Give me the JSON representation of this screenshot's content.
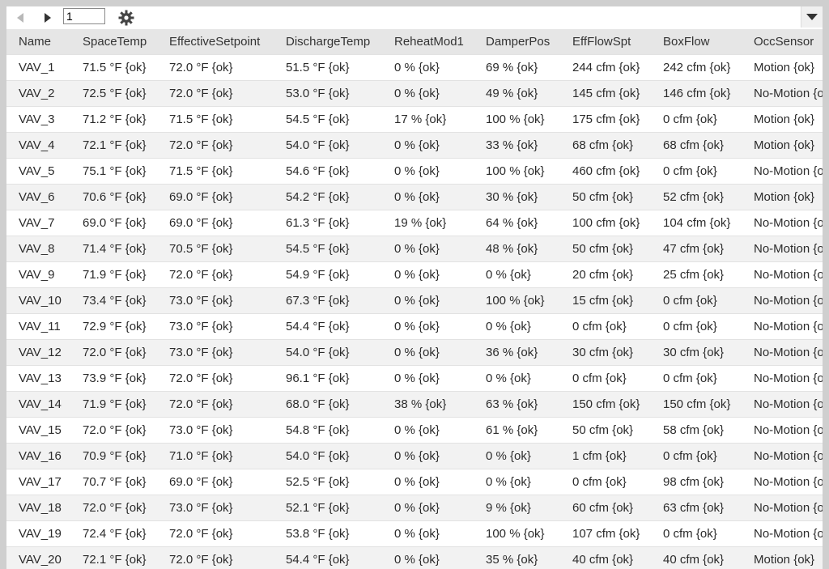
{
  "toolbar": {
    "page_value": "1",
    "prev_icon": "caret-left-icon",
    "next_icon": "caret-right-icon",
    "settings_icon": "gear-icon",
    "menu_icon": "caret-down-icon"
  },
  "table": {
    "columns": [
      "Name",
      "SpaceTemp",
      "EffectiveSetpoint",
      "DischargeTemp",
      "ReheatMod1",
      "DamperPos",
      "EffFlowSpt",
      "BoxFlow",
      "OccSensor"
    ],
    "rows": [
      [
        "VAV_1",
        "71.5 °F {ok}",
        "72.0 °F {ok}",
        "51.5 °F {ok}",
        "0 % {ok}",
        "69 % {ok}",
        "244 cfm {ok}",
        "242 cfm {ok}",
        "Motion {ok}"
      ],
      [
        "VAV_2",
        "72.5 °F {ok}",
        "72.0 °F {ok}",
        "53.0 °F {ok}",
        "0 % {ok}",
        "49 % {ok}",
        "145 cfm {ok}",
        "146 cfm {ok}",
        "No-Motion {ok}"
      ],
      [
        "VAV_3",
        "71.2 °F {ok}",
        "71.5 °F {ok}",
        "54.5 °F {ok}",
        "17 % {ok}",
        "100 % {ok}",
        "175 cfm {ok}",
        "0 cfm {ok}",
        "Motion {ok}"
      ],
      [
        "VAV_4",
        "72.1 °F {ok}",
        "72.0 °F {ok}",
        "54.0 °F {ok}",
        "0 % {ok}",
        "33 % {ok}",
        "68 cfm {ok}",
        "68 cfm {ok}",
        "Motion {ok}"
      ],
      [
        "VAV_5",
        "75.1 °F {ok}",
        "71.5 °F {ok}",
        "54.6 °F {ok}",
        "0 % {ok}",
        "100 % {ok}",
        "460 cfm {ok}",
        "0 cfm {ok}",
        "No-Motion {ok}"
      ],
      [
        "VAV_6",
        "70.6 °F {ok}",
        "69.0 °F {ok}",
        "54.2 °F {ok}",
        "0 % {ok}",
        "30 % {ok}",
        "50 cfm {ok}",
        "52 cfm {ok}",
        "Motion {ok}"
      ],
      [
        "VAV_7",
        "69.0 °F {ok}",
        "69.0 °F {ok}",
        "61.3 °F {ok}",
        "19 % {ok}",
        "64 % {ok}",
        "100 cfm {ok}",
        "104 cfm {ok}",
        "No-Motion {ok}"
      ],
      [
        "VAV_8",
        "71.4 °F {ok}",
        "70.5 °F {ok}",
        "54.5 °F {ok}",
        "0 % {ok}",
        "48 % {ok}",
        "50 cfm {ok}",
        "47 cfm {ok}",
        "No-Motion {ok}"
      ],
      [
        "VAV_9",
        "71.9 °F {ok}",
        "72.0 °F {ok}",
        "54.9 °F {ok}",
        "0 % {ok}",
        "0 % {ok}",
        "20 cfm {ok}",
        "25 cfm {ok}",
        "No-Motion {ok}"
      ],
      [
        "VAV_10",
        "73.4 °F {ok}",
        "73.0 °F {ok}",
        "67.3 °F {ok}",
        "0 % {ok}",
        "100 % {ok}",
        "15 cfm {ok}",
        "0 cfm {ok}",
        "No-Motion {ok}"
      ],
      [
        "VAV_11",
        "72.9 °F {ok}",
        "73.0 °F {ok}",
        "54.4 °F {ok}",
        "0 % {ok}",
        "0 % {ok}",
        "0 cfm {ok}",
        "0 cfm {ok}",
        "No-Motion {ok}"
      ],
      [
        "VAV_12",
        "72.0 °F {ok}",
        "73.0 °F {ok}",
        "54.0 °F {ok}",
        "0 % {ok}",
        "36 % {ok}",
        "30 cfm {ok}",
        "30 cfm {ok}",
        "No-Motion {ok}"
      ],
      [
        "VAV_13",
        "73.9 °F {ok}",
        "72.0 °F {ok}",
        "96.1 °F {ok}",
        "0 % {ok}",
        "0 % {ok}",
        "0 cfm {ok}",
        "0 cfm {ok}",
        "No-Motion {ok}"
      ],
      [
        "VAV_14",
        "71.9 °F {ok}",
        "72.0 °F {ok}",
        "68.0 °F {ok}",
        "38 % {ok}",
        "63 % {ok}",
        "150 cfm {ok}",
        "150 cfm {ok}",
        "No-Motion {ok}"
      ],
      [
        "VAV_15",
        "72.0 °F {ok}",
        "73.0 °F {ok}",
        "54.8 °F {ok}",
        "0 % {ok}",
        "61 % {ok}",
        "50 cfm {ok}",
        "58 cfm {ok}",
        "No-Motion {ok}"
      ],
      [
        "VAV_16",
        "70.9 °F {ok}",
        "71.0 °F {ok}",
        "54.0 °F {ok}",
        "0 % {ok}",
        "0 % {ok}",
        "1 cfm {ok}",
        "0 cfm {ok}",
        "No-Motion {ok}"
      ],
      [
        "VAV_17",
        "70.7 °F {ok}",
        "69.0 °F {ok}",
        "52.5 °F {ok}",
        "0 % {ok}",
        "0 % {ok}",
        "0 cfm {ok}",
        "98 cfm {ok}",
        "No-Motion {ok}"
      ],
      [
        "VAV_18",
        "72.0 °F {ok}",
        "73.0 °F {ok}",
        "52.1 °F {ok}",
        "0 % {ok}",
        "9 % {ok}",
        "60 cfm {ok}",
        "63 cfm {ok}",
        "No-Motion {ok}"
      ],
      [
        "VAV_19",
        "72.4 °F {ok}",
        "72.0 °F {ok}",
        "53.8 °F {ok}",
        "0 % {ok}",
        "100 % {ok}",
        "107 cfm {ok}",
        "0 cfm {ok}",
        "No-Motion {ok}"
      ],
      [
        "VAV_20",
        "72.1 °F {ok}",
        "72.0 °F {ok}",
        "54.4 °F {ok}",
        "0 % {ok}",
        "35 % {ok}",
        "40 cfm {ok}",
        "40 cfm {ok}",
        "Motion {ok}"
      ]
    ]
  },
  "colors": {
    "header_bg": "#e6e6e6",
    "row_alt_bg": "#f2f2f2",
    "frame_bg": "#cfcfcf"
  }
}
